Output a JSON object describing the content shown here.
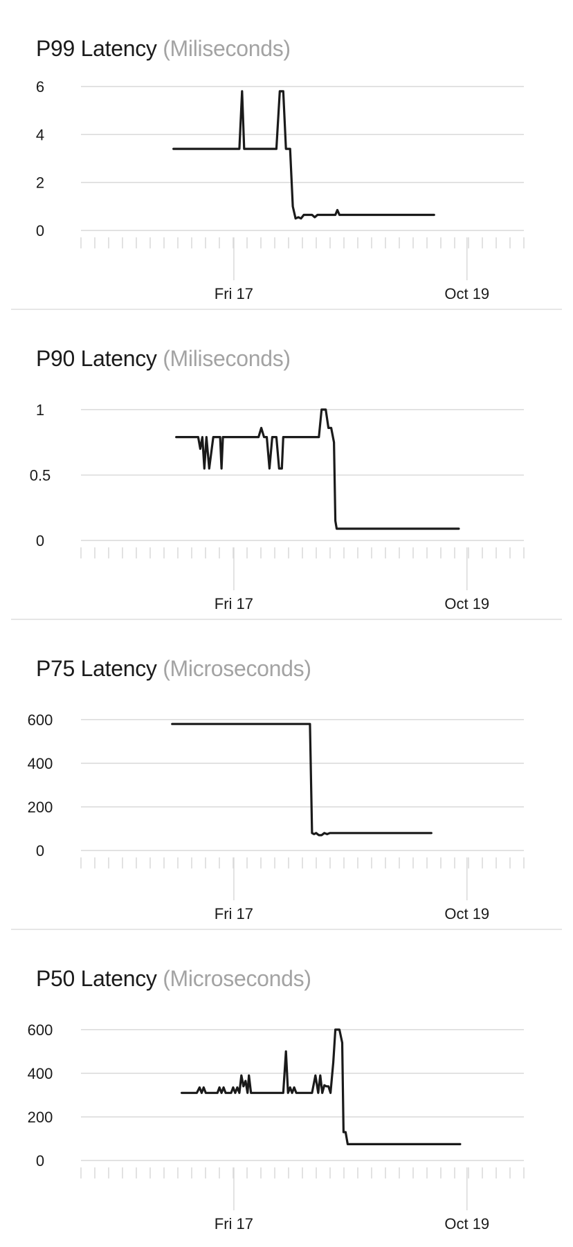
{
  "colors": {
    "line": "#1a1a1a",
    "grid": "#d9d9d9",
    "unit_text": "#a3a3a3",
    "divider": "#e6e6e6"
  },
  "x_ticks": [
    "Fri 17",
    "Oct 19"
  ],
  "chart_data": [
    {
      "type": "line",
      "title": "P99 Latency",
      "unit": "(Miliseconds)",
      "ylim": [
        0,
        6
      ],
      "y_ticks": [
        "6",
        "4",
        "2",
        "0"
      ],
      "x_tick_labels": [
        "Fri 17",
        "Oct 19"
      ],
      "grid": true,
      "series": [
        {
          "values": [
            [
              -4.4,
              3.4
            ],
            [
              0.4,
              3.4
            ],
            [
              0.6,
              5.8
            ],
            [
              0.75,
              3.4
            ],
            [
              1.1,
              3.4
            ],
            [
              3.1,
              3.4
            ],
            [
              3.35,
              5.8
            ],
            [
              3.6,
              5.8
            ],
            [
              3.8,
              3.4
            ],
            [
              4.1,
              3.4
            ],
            [
              4.3,
              1.0
            ],
            [
              4.5,
              0.5
            ],
            [
              4.7,
              0.55
            ],
            [
              4.9,
              0.5
            ],
            [
              5.1,
              0.65
            ],
            [
              5.3,
              0.65
            ],
            [
              5.7,
              0.65
            ],
            [
              5.9,
              0.55
            ],
            [
              6.1,
              0.65
            ],
            [
              7.4,
              0.65
            ],
            [
              7.55,
              0.85
            ],
            [
              7.7,
              0.65
            ],
            [
              8.0,
              0.65
            ],
            [
              10.0,
              0.65
            ],
            [
              12.0,
              0.65
            ],
            [
              14.0,
              0.65
            ],
            [
              14.6,
              0.65
            ]
          ]
        }
      ]
    },
    {
      "type": "line",
      "title": "P90 Latency",
      "unit": "(Miliseconds)",
      "ylim": [
        0,
        1.1
      ],
      "y_ticks": [
        "1",
        "0.5",
        "0"
      ],
      "x_tick_labels": [
        "Fri 17",
        "Oct 19"
      ],
      "grid": true,
      "series": [
        {
          "values": [
            [
              -4.2,
              0.79
            ],
            [
              -2.6,
              0.79
            ],
            [
              -2.45,
              0.7
            ],
            [
              -2.3,
              0.79
            ],
            [
              -2.15,
              0.55
            ],
            [
              -2.0,
              0.79
            ],
            [
              -1.8,
              0.55
            ],
            [
              -1.5,
              0.79
            ],
            [
              -1.0,
              0.79
            ],
            [
              -0.9,
              0.55
            ],
            [
              -0.8,
              0.79
            ],
            [
              1.8,
              0.79
            ],
            [
              2.0,
              0.86
            ],
            [
              2.2,
              0.79
            ],
            [
              2.4,
              0.79
            ],
            [
              2.6,
              0.55
            ],
            [
              2.8,
              0.79
            ],
            [
              3.1,
              0.79
            ],
            [
              3.3,
              0.55
            ],
            [
              3.5,
              0.55
            ],
            [
              3.6,
              0.79
            ],
            [
              4.0,
              0.79
            ],
            [
              6.2,
              0.79
            ],
            [
              6.4,
              1.0
            ],
            [
              6.7,
              1.0
            ],
            [
              6.9,
              0.86
            ],
            [
              7.1,
              0.86
            ],
            [
              7.3,
              0.75
            ],
            [
              7.4,
              0.15
            ],
            [
              7.5,
              0.09
            ],
            [
              9.0,
              0.09
            ],
            [
              12.0,
              0.09
            ],
            [
              15.0,
              0.09
            ],
            [
              16.4,
              0.09
            ]
          ]
        }
      ]
    },
    {
      "type": "line",
      "title": "P75 Latency",
      "unit": "(Microseconds)",
      "ylim": [
        0,
        660
      ],
      "y_ticks": [
        "600",
        "400",
        "200",
        "0"
      ],
      "x_tick_labels": [
        "Fri 17",
        "Oct 19"
      ],
      "grid": true,
      "series": [
        {
          "values": [
            [
              -4.5,
              580
            ],
            [
              0.0,
              580
            ],
            [
              2.0,
              580
            ],
            [
              4.0,
              580
            ],
            [
              5.55,
              580
            ],
            [
              5.7,
              80
            ],
            [
              5.85,
              75
            ],
            [
              6.0,
              80
            ],
            [
              6.2,
              70
            ],
            [
              6.4,
              70
            ],
            [
              6.6,
              80
            ],
            [
              6.8,
              75
            ],
            [
              7.0,
              80
            ],
            [
              9.0,
              80
            ],
            [
              12.0,
              80
            ],
            [
              14.4,
              80
            ]
          ]
        }
      ]
    },
    {
      "type": "line",
      "title": "P50 Latency",
      "unit": "(Microseconds)",
      "ylim": [
        0,
        660
      ],
      "y_ticks": [
        "600",
        "400",
        "200",
        "0"
      ],
      "x_tick_labels": [
        "Fri 17",
        "Oct 19"
      ],
      "grid": true,
      "series": [
        {
          "values": [
            [
              -3.8,
              310
            ],
            [
              -2.7,
              310
            ],
            [
              -2.5,
              335
            ],
            [
              -2.35,
              310
            ],
            [
              -2.2,
              335
            ],
            [
              -2.05,
              310
            ],
            [
              -1.2,
              310
            ],
            [
              -1.05,
              335
            ],
            [
              -0.9,
              310
            ],
            [
              -0.75,
              335
            ],
            [
              -0.6,
              310
            ],
            [
              -0.2,
              310
            ],
            [
              -0.05,
              335
            ],
            [
              0.1,
              310
            ],
            [
              0.25,
              335
            ],
            [
              0.4,
              310
            ],
            [
              0.55,
              390
            ],
            [
              0.7,
              340
            ],
            [
              0.85,
              365
            ],
            [
              1.0,
              310
            ],
            [
              1.1,
              390
            ],
            [
              1.25,
              310
            ],
            [
              2.0,
              310
            ],
            [
              3.6,
              310
            ],
            [
              3.8,
              500
            ],
            [
              3.95,
              310
            ],
            [
              4.1,
              335
            ],
            [
              4.25,
              310
            ],
            [
              4.4,
              335
            ],
            [
              4.55,
              310
            ],
            [
              5.0,
              310
            ],
            [
              5.7,
              310
            ],
            [
              5.95,
              390
            ],
            [
              6.15,
              310
            ],
            [
              6.3,
              390
            ],
            [
              6.45,
              310
            ],
            [
              6.6,
              345
            ],
            [
              6.75,
              340
            ],
            [
              6.9,
              340
            ],
            [
              7.05,
              310
            ],
            [
              7.25,
              450
            ],
            [
              7.4,
              600
            ],
            [
              7.7,
              600
            ],
            [
              7.9,
              540
            ],
            [
              8.0,
              130
            ],
            [
              8.15,
              130
            ],
            [
              8.3,
              75
            ],
            [
              10.0,
              75
            ],
            [
              13.0,
              75
            ],
            [
              16.5,
              75
            ]
          ]
        }
      ]
    }
  ]
}
